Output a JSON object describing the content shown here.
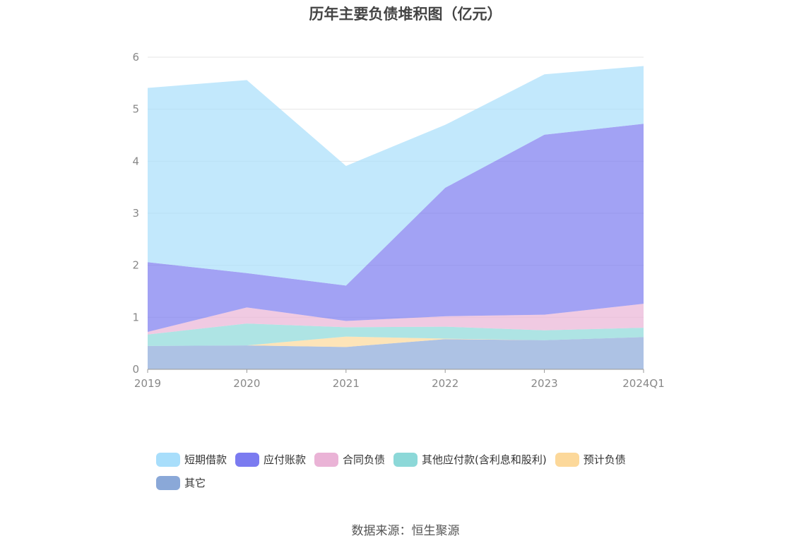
{
  "chart_data": {
    "type": "area",
    "stacked": true,
    "title": "历年主要负债堆积图（亿元）",
    "categories": [
      "2019",
      "2020",
      "2021",
      "2022",
      "2023",
      "2024Q1"
    ],
    "ylim": [
      0,
      6
    ],
    "yticks": [
      "0",
      "1",
      "2",
      "3",
      "4",
      "5",
      "6"
    ],
    "grid": true,
    "legend_position": "bottom",
    "series": [
      {
        "name": "其它",
        "color": "#8aa8d8",
        "values": [
          0.45,
          0.46,
          0.43,
          0.58,
          0.56,
          0.62
        ]
      },
      {
        "name": "预计负债",
        "color": "#fcd89a",
        "values": [
          0.0,
          0.0,
          0.2,
          0.01,
          0.0,
          0.0
        ]
      },
      {
        "name": "其他应付款(含利息和股利)",
        "color": "#8cd8d8",
        "values": [
          0.22,
          0.42,
          0.18,
          0.23,
          0.19,
          0.18
        ]
      },
      {
        "name": "合同负债",
        "color": "#eab3d6",
        "values": [
          0.05,
          0.31,
          0.12,
          0.2,
          0.3,
          0.46
        ]
      },
      {
        "name": "应付账款",
        "color": "#7b7bf0",
        "values": [
          1.34,
          0.66,
          0.68,
          2.47,
          3.46,
          3.46
        ]
      },
      {
        "name": "短期借款",
        "color": "#a8defb",
        "values": [
          3.35,
          3.71,
          2.3,
          1.21,
          1.16,
          1.11
        ]
      }
    ],
    "legend_order": [
      "短期借款",
      "应付账款",
      "合同负债",
      "其他应付款(含利息和股利)",
      "预计负债",
      "其它"
    ]
  },
  "source": "数据来源：恒生聚源"
}
